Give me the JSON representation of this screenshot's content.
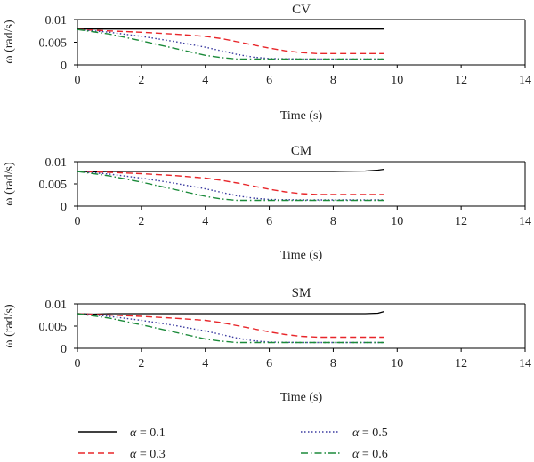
{
  "chart_data": [
    {
      "type": "line",
      "title": "CV",
      "xlabel": "Time (s)",
      "ylabel": "ω (rad/s)",
      "xlim": [
        0,
        14
      ],
      "ylim": [
        0,
        0.01
      ],
      "xticks": [
        "0",
        "2",
        "4",
        "6",
        "8",
        "10",
        "12",
        "14"
      ],
      "yticks": [
        "0",
        "0.005",
        "0.01"
      ],
      "grid": false,
      "series": [
        {
          "name": "α = 0.1",
          "color": "#000000",
          "dash": "solid",
          "x": [
            0,
            1,
            2,
            3,
            4,
            5,
            6,
            7,
            8,
            9,
            9.6
          ],
          "y": [
            0.0079,
            0.0079,
            0.0079,
            0.0079,
            0.0079,
            0.0079,
            0.0079,
            0.0079,
            0.0079,
            0.0079,
            0.0079
          ]
        },
        {
          "name": "α = 0.3",
          "color": "#e8262a",
          "dash": "dashed",
          "x": [
            0,
            1,
            2,
            3,
            4,
            4.5,
            5,
            5.5,
            6,
            6.5,
            7,
            7.5,
            8,
            9,
            9.6
          ],
          "y": [
            0.0078,
            0.0075,
            0.0072,
            0.0068,
            0.0063,
            0.0058,
            0.0051,
            0.0044,
            0.0037,
            0.0031,
            0.0027,
            0.0025,
            0.0025,
            0.0025,
            0.0025
          ]
        },
        {
          "name": "α = 0.5",
          "color": "#3a3aa0",
          "dash": "dotted",
          "x": [
            0,
            1,
            2,
            3,
            4,
            4.5,
            5,
            5.5,
            6,
            7,
            8,
            9,
            9.6
          ],
          "y": [
            0.0078,
            0.0072,
            0.0063,
            0.0052,
            0.0039,
            0.0031,
            0.0023,
            0.0017,
            0.0014,
            0.0013,
            0.0013,
            0.0013,
            0.0013
          ]
        },
        {
          "name": "α = 0.6",
          "color": "#1b8a3a",
          "dash": "dashdot",
          "x": [
            0,
            1,
            2,
            3,
            3.5,
            4,
            4.5,
            5,
            6,
            7,
            8,
            9,
            9.6
          ],
          "y": [
            0.0078,
            0.0068,
            0.0053,
            0.0037,
            0.0029,
            0.0021,
            0.0016,
            0.0013,
            0.0013,
            0.0013,
            0.0013,
            0.0013,
            0.0013
          ]
        }
      ]
    },
    {
      "type": "line",
      "title": "CM",
      "xlabel": "Time (s)",
      "ylabel": "ω (rad/s)",
      "xlim": [
        0,
        14
      ],
      "ylim": [
        0,
        0.01
      ],
      "xticks": [
        "0",
        "2",
        "4",
        "6",
        "8",
        "10",
        "12",
        "14"
      ],
      "yticks": [
        "0",
        "0.005",
        "0.01"
      ],
      "grid": false,
      "series": [
        {
          "name": "α = 0.1",
          "color": "#000000",
          "dash": "solid",
          "x": [
            0,
            0.5,
            1,
            2,
            3,
            4,
            5,
            6,
            7,
            8,
            9,
            9.4,
            9.6
          ],
          "y": [
            0.0078,
            0.0077,
            0.0078,
            0.0078,
            0.0078,
            0.0078,
            0.0078,
            0.0078,
            0.0078,
            0.0078,
            0.0079,
            0.0081,
            0.0083
          ]
        },
        {
          "name": "α = 0.3",
          "color": "#e8262a",
          "dash": "dashed",
          "x": [
            0,
            1,
            2,
            3,
            4,
            4.5,
            5,
            5.5,
            6,
            6.5,
            7,
            7.5,
            8,
            9,
            9.6
          ],
          "y": [
            0.0078,
            0.0076,
            0.0073,
            0.0069,
            0.0063,
            0.0058,
            0.0052,
            0.0045,
            0.0038,
            0.0032,
            0.0028,
            0.0026,
            0.0026,
            0.0026,
            0.0026
          ]
        },
        {
          "name": "α = 0.5",
          "color": "#3a3aa0",
          "dash": "dotted",
          "x": [
            0,
            1,
            2,
            3,
            4,
            4.5,
            5,
            5.5,
            6,
            7,
            8,
            9,
            9.6
          ],
          "y": [
            0.0078,
            0.0072,
            0.0063,
            0.0052,
            0.0039,
            0.0031,
            0.0023,
            0.0018,
            0.0015,
            0.0014,
            0.0014,
            0.0014,
            0.0014
          ]
        },
        {
          "name": "α = 0.6",
          "color": "#1b8a3a",
          "dash": "dashdot",
          "x": [
            0,
            1,
            2,
            3,
            3.5,
            4,
            4.5,
            5,
            6,
            7,
            8,
            9,
            9.6
          ],
          "y": [
            0.0078,
            0.0068,
            0.0054,
            0.0038,
            0.003,
            0.0022,
            0.0016,
            0.0013,
            0.0013,
            0.0013,
            0.0013,
            0.0013,
            0.0013
          ]
        }
      ]
    },
    {
      "type": "line",
      "title": "SM",
      "xlabel": "Time (s)",
      "ylabel": "ω (rad/s)",
      "xlim": [
        0,
        14
      ],
      "ylim": [
        0,
        0.01
      ],
      "xticks": [
        "0",
        "2",
        "4",
        "6",
        "8",
        "10",
        "12",
        "14"
      ],
      "yticks": [
        "0",
        "0.005",
        "0.01"
      ],
      "grid": false,
      "series": [
        {
          "name": "α = 0.1",
          "color": "#000000",
          "dash": "solid",
          "x": [
            0,
            0.5,
            1,
            2,
            3,
            4,
            5,
            6,
            7,
            8,
            9,
            9.4,
            9.6
          ],
          "y": [
            0.0078,
            0.0077,
            0.0078,
            0.0078,
            0.0078,
            0.0078,
            0.0078,
            0.0078,
            0.0078,
            0.0078,
            0.0078,
            0.0079,
            0.0083
          ]
        },
        {
          "name": "α = 0.3",
          "color": "#e8262a",
          "dash": "dashed",
          "x": [
            0,
            1,
            2,
            3,
            4,
            4.5,
            5,
            5.5,
            6,
            6.5,
            7,
            7.5,
            8,
            9,
            9.6
          ],
          "y": [
            0.0078,
            0.0075,
            0.0072,
            0.0068,
            0.0063,
            0.0058,
            0.0051,
            0.0044,
            0.0037,
            0.0031,
            0.0027,
            0.0025,
            0.0025,
            0.0025,
            0.0025
          ]
        },
        {
          "name": "α = 0.5",
          "color": "#3a3aa0",
          "dash": "dotted",
          "x": [
            0,
            1,
            2,
            3,
            4,
            4.5,
            5,
            5.5,
            6,
            7,
            8,
            9,
            9.6
          ],
          "y": [
            0.0078,
            0.0072,
            0.0063,
            0.0052,
            0.0039,
            0.0031,
            0.0023,
            0.0017,
            0.0014,
            0.0013,
            0.0013,
            0.0013,
            0.0013
          ]
        },
        {
          "name": "α = 0.6",
          "color": "#1b8a3a",
          "dash": "dashdot",
          "x": [
            0,
            1,
            2,
            3,
            3.5,
            4,
            4.5,
            5,
            6,
            7,
            8,
            9,
            9.6
          ],
          "y": [
            0.0078,
            0.0068,
            0.0053,
            0.0037,
            0.0029,
            0.0021,
            0.0016,
            0.0013,
            0.0013,
            0.0013,
            0.0013,
            0.0013,
            0.0013
          ]
        }
      ]
    }
  ],
  "legend": {
    "placement": "bottom",
    "items": [
      {
        "label": "α = 0.1",
        "color": "#000000",
        "dash": "solid"
      },
      {
        "label": "α = 0.5",
        "color": "#3a3aa0",
        "dash": "dotted"
      },
      {
        "label": "α = 0.3",
        "color": "#e8262a",
        "dash": "dashed"
      },
      {
        "label": "α = 0.6",
        "color": "#1b8a3a",
        "dash": "dashdot"
      }
    ]
  }
}
